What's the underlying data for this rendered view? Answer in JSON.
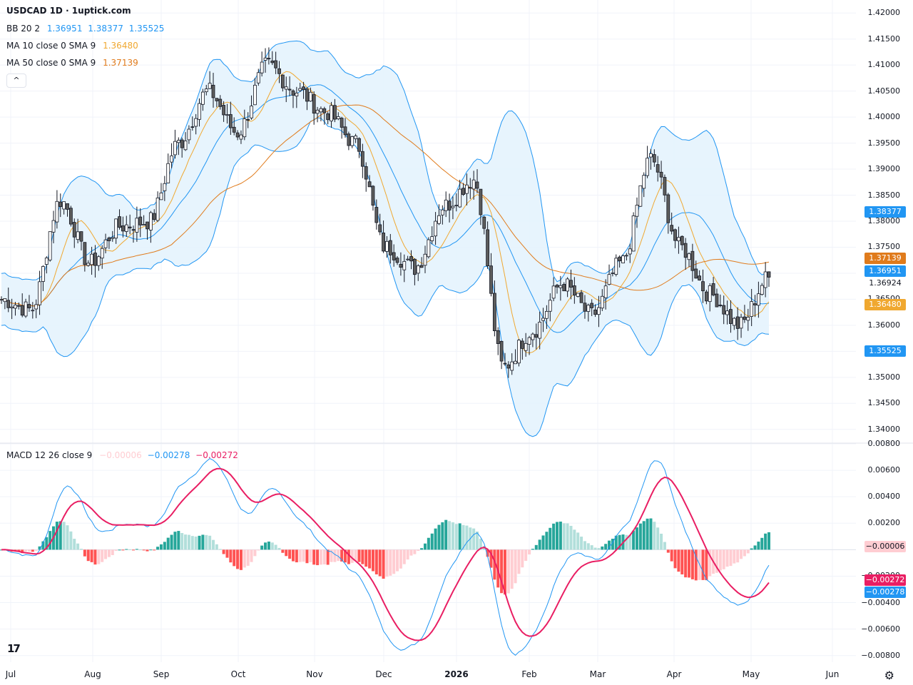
{
  "header": {
    "title": "USDCAD 1D · 1uptick.com"
  },
  "legends": {
    "bb": {
      "label": "BB 20 2",
      "basis": "1.36951",
      "upper": "1.38377",
      "lower": "1.35525",
      "color": "#2962ff"
    },
    "ma10": {
      "label": "MA 10 close 0 SMA 9",
      "value": "1.36480",
      "color": "#f0a830"
    },
    "ma50": {
      "label": "MA 50 close 0 SMA 9",
      "value": "1.37139",
      "color": "#e07b1c"
    },
    "macd": {
      "label": "MACD 12 26 close 9",
      "hist": "−0.00006",
      "macd": "−0.00278",
      "signal": "−0.00272"
    }
  },
  "collapse_button": {
    "glyph": "^"
  },
  "price_axis": {
    "ticks": [
      "1.42000",
      "1.41500",
      "1.41000",
      "1.40500",
      "1.40000",
      "1.39500",
      "1.39000",
      "1.38500",
      "1.38000",
      "1.37500",
      "1.37000",
      "1.36500",
      "1.36000",
      "1.35500",
      "1.35000",
      "1.34500",
      "1.34000"
    ],
    "tags": {
      "bb_upper": "1.38377",
      "ma50": "1.37139",
      "bb_basis": "1.36951",
      "last": "1.36924",
      "ma10": "1.36480",
      "bb_lower": "1.35525"
    }
  },
  "macd_axis": {
    "ticks": [
      "0.00800",
      "0.00600",
      "0.00400",
      "0.00200",
      "0.00000",
      "−0.00200",
      "−0.00400",
      "−0.00600",
      "−0.00800"
    ],
    "tags": {
      "hist": "−0.00006",
      "signal": "−0.00272",
      "macd": "−0.00278"
    }
  },
  "time_axis": {
    "labels": [
      "Jul",
      "Aug",
      "Sep",
      "Oct",
      "Nov",
      "Dec",
      "2026",
      "Feb",
      "Mar",
      "Apr",
      "May",
      "Jun"
    ]
  },
  "colors": {
    "up": "#ffffff",
    "down": "#5d5d5d",
    "wick": "#131722",
    "bb_line": "#2196f3",
    "bb_fill": "#e3f2fd",
    "ma10": "#f0a830",
    "ma50": "#e07b1c",
    "macd": "#2196f3",
    "signal": "#e91e63",
    "hist_pos_strong": "#26a69a",
    "hist_pos_weak": "#b2dfdb",
    "hist_neg_strong": "#ff5252",
    "hist_neg_weak": "#ffcdd2"
  },
  "chart_data": {
    "type": "line",
    "title": "USDCAD 1D",
    "ohlc_keypoints": [
      {
        "date": "Jul",
        "close": 1.365
      },
      {
        "date": "Jul mid",
        "close": 1.363
      },
      {
        "date": "Aug",
        "close": 1.384
      },
      {
        "date": "Aug mid",
        "close": 1.372
      },
      {
        "date": "Sep",
        "close": 1.379
      },
      {
        "date": "Sep mid",
        "close": 1.38
      },
      {
        "date": "Oct",
        "close": 1.395
      },
      {
        "date": "Oct mid",
        "close": 1.405
      },
      {
        "date": "Oct end",
        "close": 1.397
      },
      {
        "date": "Nov",
        "close": 1.41
      },
      {
        "date": "Nov mid",
        "close": 1.405
      },
      {
        "date": "Nov end",
        "close": 1.401
      },
      {
        "date": "Dec",
        "close": 1.395
      },
      {
        "date": "Dec mid",
        "close": 1.375
      },
      {
        "date": "Dec end",
        "close": 1.371
      },
      {
        "date": "2026",
        "close": 1.383
      },
      {
        "date": "Jan mid",
        "close": 1.388
      },
      {
        "date": "Jan end",
        "close": 1.352
      },
      {
        "date": "Feb",
        "close": 1.359
      },
      {
        "date": "Feb mid",
        "close": 1.368
      },
      {
        "date": "Mar",
        "close": 1.362
      },
      {
        "date": "Mar mid",
        "close": 1.372
      },
      {
        "date": "Apr",
        "close": 1.392
      },
      {
        "date": "Apr mid",
        "close": 1.375
      },
      {
        "date": "Apr end",
        "close": 1.366
      },
      {
        "date": "May",
        "close": 1.36
      },
      {
        "date": "May latest",
        "close": 1.36924
      }
    ],
    "indicators": {
      "bb": {
        "period": 20,
        "mult": 2,
        "basis": 1.36951,
        "upper": 1.38377,
        "lower": 1.35525
      },
      "ma10": 1.3648,
      "ma50": 1.37139,
      "macd": {
        "macd": -0.00278,
        "signal": -0.00272,
        "hist": -6e-05
      }
    },
    "ylim": [
      1.3375,
      1.4225
    ],
    "macd_ylim": [
      -0.0085,
      0.008
    ],
    "grid": true
  }
}
